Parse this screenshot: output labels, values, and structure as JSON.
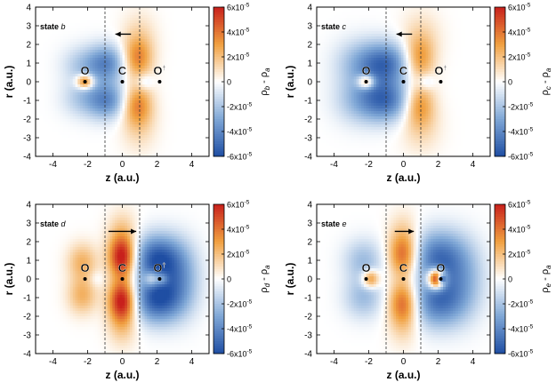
{
  "figure": {
    "colors": {
      "negative": "#1f4ea3",
      "zero": "#ffffff",
      "positive": "#c8201c",
      "mid_negative": "#7fa7d6",
      "mid_positive": "#f0a040"
    }
  },
  "chart_data": [
    {
      "type": "heatmap",
      "panel": "b",
      "state_prefix": "state",
      "state_letter": "b",
      "xlabel": "z (a.u.)",
      "ylabel": "r (a.u.)",
      "xlim": [
        -5,
        5
      ],
      "ylim": [
        -4,
        4
      ],
      "xticks": [
        "-4",
        "-2",
        "0",
        "2",
        "4"
      ],
      "yticks": [
        "4",
        "3",
        "2",
        "1",
        "0",
        "-1",
        "-2",
        "-3",
        "-4"
      ],
      "colorbar": {
        "label_main": "ρ",
        "label_sub": "b",
        "label_rest": " - ρ",
        "label_sub2": "a",
        "range": [
          -6e-05,
          6e-05
        ],
        "ticks": [
          {
            "mant": "6x10",
            "exp": "-5",
            "value": 6e-05
          },
          {
            "mant": "4x10",
            "exp": "-5",
            "value": 4e-05
          },
          {
            "mant": "2x10",
            "exp": "-5",
            "value": 2e-05
          },
          {
            "mant": "0",
            "exp": "",
            "value": 0
          },
          {
            "mant": "-2x10",
            "exp": "-5",
            "value": -2e-05
          },
          {
            "mant": "-4x10",
            "exp": "-5",
            "value": -4e-05
          },
          {
            "mant": "-6x10",
            "exp": "-5",
            "value": -6e-05
          }
        ]
      },
      "atoms": [
        {
          "label": "O",
          "dagger": "",
          "z": -2.15,
          "r": 0
        },
        {
          "label": "C",
          "dagger": "",
          "z": 0,
          "r": 0
        },
        {
          "label": "O",
          "dagger": "†",
          "z": 2.15,
          "r": 0
        }
      ],
      "dashed_lines_z": [
        -1,
        1
      ],
      "arrow": {
        "from_z": 0.5,
        "to_z": -0.4,
        "r": 2.55,
        "direction": "left"
      },
      "lobes": [
        {
          "z": 0.85,
          "r": 1.2,
          "sz": 0.6,
          "sr": 0.75,
          "amp": 3.2e-05
        },
        {
          "z": 0.85,
          "r": -1.2,
          "sz": 0.6,
          "sr": 0.75,
          "amp": 3.2e-05
        },
        {
          "z": 0.95,
          "r": 2.3,
          "sz": 0.7,
          "sr": 1.0,
          "amp": 1.3e-05
        },
        {
          "z": 0.95,
          "r": -2.3,
          "sz": 0.7,
          "sr": 1.0,
          "amp": 1.3e-05
        },
        {
          "z": -0.9,
          "r": 1.0,
          "sz": 0.8,
          "sr": 0.7,
          "amp": -4e-05
        },
        {
          "z": -0.9,
          "r": -1.0,
          "sz": 0.8,
          "sr": 0.7,
          "amp": -4e-05
        },
        {
          "z": -2.4,
          "r": 0.9,
          "sz": 0.8,
          "sr": 0.7,
          "amp": -1.6e-05
        },
        {
          "z": -2.4,
          "r": -0.9,
          "sz": 0.8,
          "sr": 0.7,
          "amp": -1.6e-05
        },
        {
          "z": -2.15,
          "r": 0.15,
          "sz": 0.35,
          "sr": 0.2,
          "amp": 3.5e-05
        },
        {
          "z": -2.15,
          "r": -0.15,
          "sz": 0.35,
          "sr": 0.2,
          "amp": 3.5e-05
        },
        {
          "z": 1.3,
          "r": 0.0,
          "sz": 0.35,
          "sr": 0.3,
          "amp": -1.5e-05
        }
      ]
    },
    {
      "type": "heatmap",
      "panel": "c",
      "state_prefix": "state",
      "state_letter": "c",
      "xlabel": "z (a.u.)",
      "ylabel": "r (a.u.)",
      "xlim": [
        -5,
        5
      ],
      "ylim": [
        -4,
        4
      ],
      "xticks": [
        "-4",
        "-2",
        "0",
        "2",
        "4"
      ],
      "yticks": [
        "4",
        "3",
        "2",
        "1",
        "0",
        "-1",
        "-2",
        "-3",
        "-4"
      ],
      "colorbar": {
        "label_main": "ρ",
        "label_sub": "c",
        "label_rest": " - ρ",
        "label_sub2": "a",
        "range": [
          -6e-05,
          6e-05
        ],
        "ticks": [
          {
            "mant": "6x10",
            "exp": "-5",
            "value": 6e-05
          },
          {
            "mant": "4x10",
            "exp": "-5",
            "value": 4e-05
          },
          {
            "mant": "2x10",
            "exp": "-5",
            "value": 2e-05
          },
          {
            "mant": "0",
            "exp": "",
            "value": 0
          },
          {
            "mant": "-2x10",
            "exp": "-5",
            "value": -2e-05
          },
          {
            "mant": "-4x10",
            "exp": "-5",
            "value": -4e-05
          },
          {
            "mant": "-6x10",
            "exp": "-5",
            "value": -6e-05
          }
        ]
      },
      "atoms": [
        {
          "label": "O",
          "dagger": "",
          "z": -2.15,
          "r": 0
        },
        {
          "label": "C",
          "dagger": "",
          "z": 0,
          "r": 0
        },
        {
          "label": "O",
          "dagger": "†",
          "z": 2.15,
          "r": 0
        }
      ],
      "dashed_lines_z": [
        -1,
        1
      ],
      "arrow": {
        "from_z": 0.5,
        "to_z": -0.4,
        "r": 2.55,
        "direction": "left"
      },
      "lobes": [
        {
          "z": 0.9,
          "r": 1.2,
          "sz": 0.6,
          "sr": 0.8,
          "amp": 3e-05
        },
        {
          "z": 0.9,
          "r": -1.2,
          "sz": 0.6,
          "sr": 0.8,
          "amp": 3e-05
        },
        {
          "z": 1.0,
          "r": 2.4,
          "sz": 0.8,
          "sr": 1.0,
          "amp": 1.2e-05
        },
        {
          "z": 1.0,
          "r": -2.4,
          "sz": 0.8,
          "sr": 1.0,
          "amp": 1.2e-05
        },
        {
          "z": -1.0,
          "r": 1.0,
          "sz": 1.0,
          "sr": 0.8,
          "amp": -4.5e-05
        },
        {
          "z": -1.0,
          "r": -1.0,
          "sz": 1.0,
          "sr": 0.8,
          "amp": -4.5e-05
        },
        {
          "z": -2.6,
          "r": 1.0,
          "sz": 1.0,
          "sr": 0.9,
          "amp": -2e-05
        },
        {
          "z": -2.6,
          "r": -1.0,
          "sz": 1.0,
          "sr": 0.9,
          "amp": -2e-05
        },
        {
          "z": -2.15,
          "r": 0.15,
          "sz": 0.35,
          "sr": 0.2,
          "amp": 3.2e-05
        },
        {
          "z": -2.15,
          "r": -0.15,
          "sz": 0.35,
          "sr": 0.2,
          "amp": 3.2e-05
        },
        {
          "z": 1.3,
          "r": 0.0,
          "sz": 0.35,
          "sr": 0.3,
          "amp": -1.5e-05
        }
      ]
    },
    {
      "type": "heatmap",
      "panel": "d",
      "state_prefix": "state",
      "state_letter": "d",
      "xlabel": "z (a.u.)",
      "ylabel": "r (a.u.)",
      "xlim": [
        -5,
        5
      ],
      "ylim": [
        -4,
        4
      ],
      "xticks": [
        "-4",
        "-2",
        "0",
        "2",
        "4"
      ],
      "yticks": [
        "4",
        "3",
        "2",
        "1",
        "0",
        "-1",
        "-2",
        "-3",
        "-4"
      ],
      "colorbar": {
        "label_main": "ρ",
        "label_sub": "d",
        "label_rest": " - ρ",
        "label_sub2": "a",
        "range": [
          -6e-05,
          6e-05
        ],
        "ticks": [
          {
            "mant": "6x10",
            "exp": "-5",
            "value": 6e-05
          },
          {
            "mant": "4x10",
            "exp": "-5",
            "value": 4e-05
          },
          {
            "mant": "2x10",
            "exp": "-5",
            "value": 2e-05
          },
          {
            "mant": "0",
            "exp": "",
            "value": 0
          },
          {
            "mant": "-2x10",
            "exp": "-5",
            "value": -2e-05
          },
          {
            "mant": "-4x10",
            "exp": "-5",
            "value": -4e-05
          },
          {
            "mant": "-6x10",
            "exp": "-5",
            "value": -6e-05
          }
        ]
      },
      "atoms": [
        {
          "label": "O",
          "dagger": "",
          "z": -2.15,
          "r": 0
        },
        {
          "label": "C",
          "dagger": "",
          "z": 0,
          "r": 0
        },
        {
          "label": "O",
          "dagger": "†",
          "z": 2.15,
          "r": 0
        }
      ],
      "dashed_lines_z": [
        -1,
        1
      ],
      "arrow": {
        "from_z": -0.8,
        "to_z": 0.8,
        "r": 2.55,
        "direction": "right"
      },
      "lobes": [
        {
          "z": 0,
          "r": 1.1,
          "sz": 0.55,
          "sr": 0.75,
          "amp": 6e-05
        },
        {
          "z": 0,
          "r": -1.1,
          "sz": 0.55,
          "sr": 0.75,
          "amp": 6e-05
        },
        {
          "z": 0,
          "r": 2.3,
          "sz": 0.6,
          "sr": 0.9,
          "amp": 2e-05
        },
        {
          "z": 0,
          "r": -2.3,
          "sz": 0.6,
          "sr": 0.9,
          "amp": 2e-05
        },
        {
          "z": 2.0,
          "r": 1.1,
          "sz": 1.0,
          "sr": 0.9,
          "amp": -5.5e-05
        },
        {
          "z": 2.0,
          "r": -1.1,
          "sz": 1.0,
          "sr": 0.9,
          "amp": -5.5e-05
        },
        {
          "z": 3.4,
          "r": 0.0,
          "sz": 0.8,
          "sr": 1.3,
          "amp": -2.5e-05
        },
        {
          "z": 1.7,
          "r": 0.0,
          "sz": 0.3,
          "sr": 0.3,
          "amp": 3.5e-05
        },
        {
          "z": 2.3,
          "r": 0.0,
          "sz": 0.25,
          "sr": 0.25,
          "amp": 2.5e-05
        },
        {
          "z": -2.3,
          "r": 0.9,
          "sz": 0.6,
          "sr": 0.7,
          "amp": 2.4e-05
        },
        {
          "z": -2.3,
          "r": -0.9,
          "sz": 0.6,
          "sr": 0.7,
          "amp": 2.4e-05
        },
        {
          "z": -1.5,
          "r": 0.0,
          "sz": 0.3,
          "sr": 0.3,
          "amp": -8e-06
        }
      ]
    },
    {
      "type": "heatmap",
      "panel": "e",
      "state_prefix": "state",
      "state_letter": "e",
      "xlabel": "z (a.u.)",
      "ylabel": "r (a.u.)",
      "xlim": [
        -5,
        5
      ],
      "ylim": [
        -4,
        4
      ],
      "xticks": [
        "-4",
        "-2",
        "0",
        "2",
        "4"
      ],
      "yticks": [
        "4",
        "3",
        "2",
        "1",
        "0",
        "-1",
        "-2",
        "-3",
        "-4"
      ],
      "colorbar": {
        "label_main": "ρ",
        "label_sub": "e",
        "label_rest": " - ρ",
        "label_sub2": "a",
        "range": [
          -6e-05,
          6e-05
        ],
        "ticks": [
          {
            "mant": "6x10",
            "exp": "-5",
            "value": 6e-05
          },
          {
            "mant": "4x10",
            "exp": "-5",
            "value": 4e-05
          },
          {
            "mant": "2x10",
            "exp": "-5",
            "value": 2e-05
          },
          {
            "mant": "0",
            "exp": "",
            "value": 0
          },
          {
            "mant": "-2x10",
            "exp": "-5",
            "value": -2e-05
          },
          {
            "mant": "-4x10",
            "exp": "-5",
            "value": -4e-05
          },
          {
            "mant": "-6x10",
            "exp": "-5",
            "value": -6e-05
          }
        ]
      },
      "atoms": [
        {
          "label": "O",
          "dagger": "",
          "z": -2.15,
          "r": 0
        },
        {
          "label": "C",
          "dagger": "",
          "z": 0,
          "r": 0
        },
        {
          "label": "O",
          "dagger": "",
          "z": 2.15,
          "r": 0
        }
      ],
      "dashed_lines_z": [
        -1,
        1
      ],
      "arrow": {
        "from_z": -0.5,
        "to_z": 0.6,
        "r": 2.55,
        "direction": "right"
      },
      "lobes": [
        {
          "z": 0,
          "r": 1.2,
          "sz": 0.6,
          "sr": 0.8,
          "amp": 4e-05
        },
        {
          "z": 0,
          "r": -1.2,
          "sz": 0.6,
          "sr": 0.8,
          "amp": 4e-05
        },
        {
          "z": 0,
          "r": 2.3,
          "sz": 0.6,
          "sr": 0.9,
          "amp": 1.5e-05
        },
        {
          "z": 0,
          "r": -2.3,
          "sz": 0.6,
          "sr": 0.9,
          "amp": 1.5e-05
        },
        {
          "z": 2.0,
          "r": 1.2,
          "sz": 1.1,
          "sr": 1.0,
          "amp": -4.5e-05
        },
        {
          "z": 2.0,
          "r": -1.2,
          "sz": 1.1,
          "sr": 1.0,
          "amp": -4.5e-05
        },
        {
          "z": 3.5,
          "r": 0.0,
          "sz": 0.9,
          "sr": 1.4,
          "amp": -2e-05
        },
        {
          "z": 1.9,
          "r": 0.2,
          "sz": 0.35,
          "sr": 0.3,
          "amp": 6e-05
        },
        {
          "z": 1.9,
          "r": -0.2,
          "sz": 0.35,
          "sr": 0.3,
          "amp": 6e-05
        },
        {
          "z": 2.2,
          "r": 0.0,
          "sz": 0.15,
          "sr": 0.15,
          "amp": -6e-05
        },
        {
          "z": -2.3,
          "r": 1.0,
          "sz": 0.8,
          "sr": 0.8,
          "amp": -2.2e-05
        },
        {
          "z": -2.3,
          "r": -1.0,
          "sz": 0.8,
          "sr": 0.8,
          "amp": -2.2e-05
        },
        {
          "z": -1.9,
          "r": 0.2,
          "sz": 0.35,
          "sr": 0.25,
          "amp": 3e-05
        },
        {
          "z": -1.9,
          "r": -0.2,
          "sz": 0.35,
          "sr": 0.25,
          "amp": 3e-05
        }
      ]
    }
  ]
}
